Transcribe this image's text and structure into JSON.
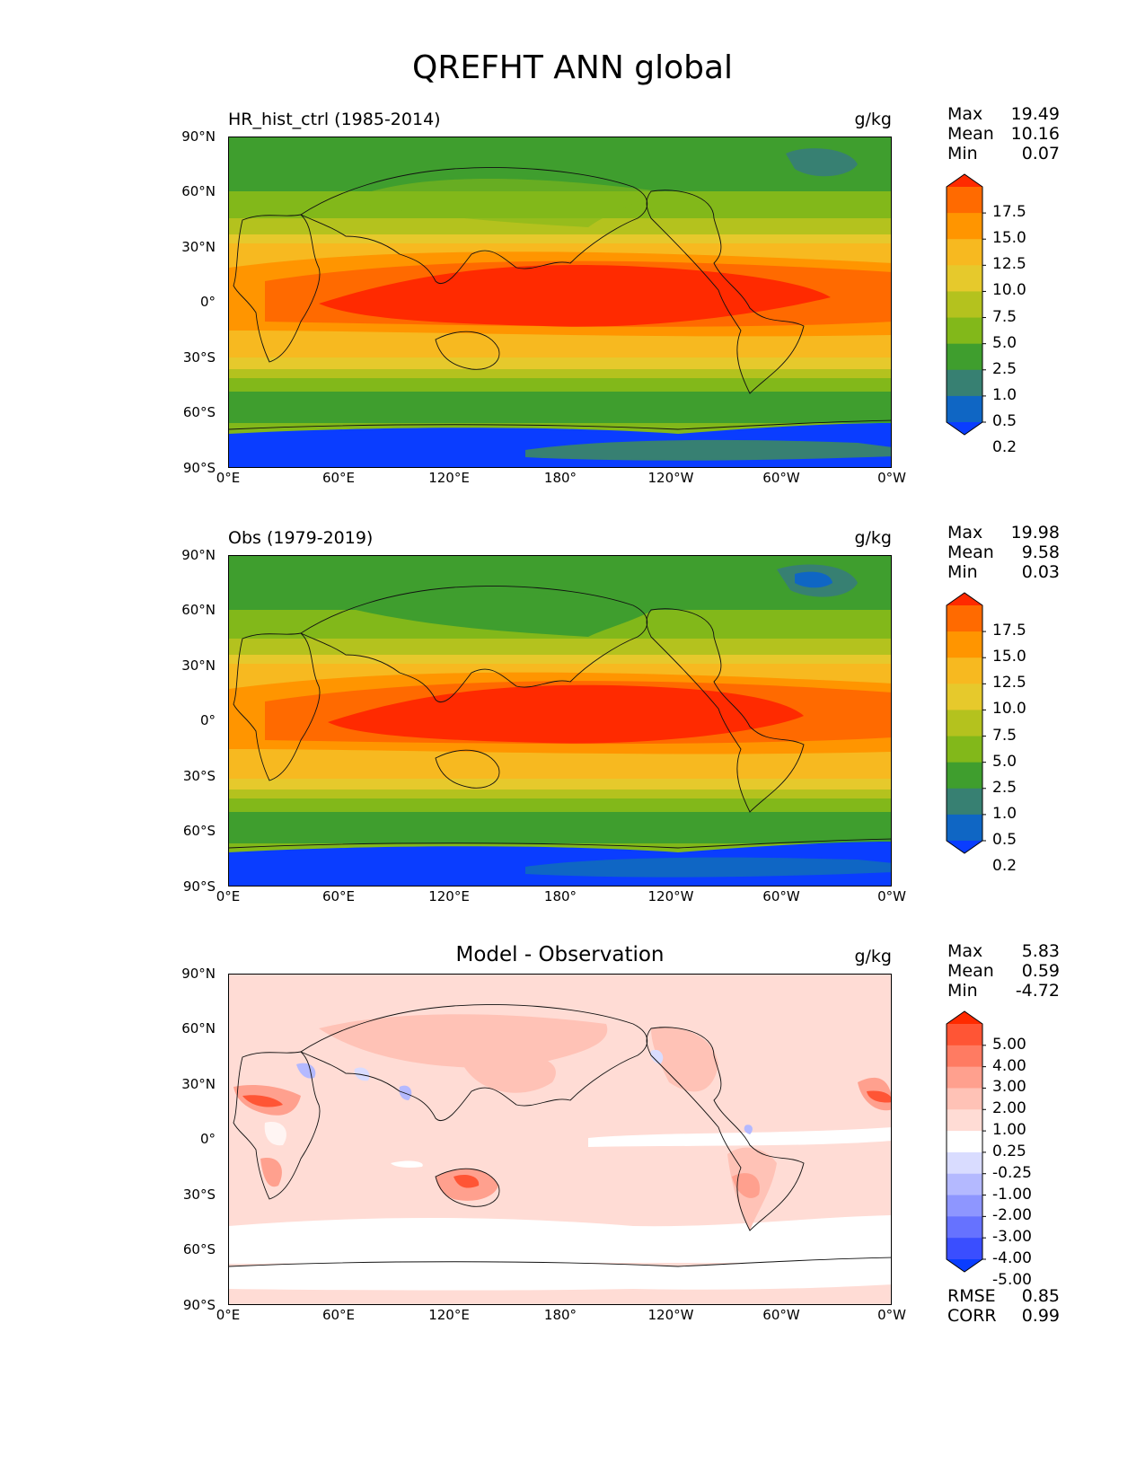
{
  "figure": {
    "title": "QREFHT ANN global"
  },
  "axes": {
    "lat_ticks": [
      "90°N",
      "60°N",
      "30°N",
      "0°",
      "30°S",
      "60°S",
      "90°S"
    ],
    "lon_ticks": [
      "0°E",
      "60°E",
      "120°E",
      "180°",
      "120°W",
      "60°W",
      "0°W"
    ]
  },
  "panels": [
    {
      "title": "HR_hist_ctrl (1985-2014)",
      "units": "g/kg",
      "stats": [
        {
          "label": "Max",
          "value": "19.49"
        },
        {
          "label": "Mean",
          "value": "10.16"
        },
        {
          "label": "Min",
          "value": "0.07"
        }
      ],
      "colorbar": {
        "levels": [
          "17.5",
          "15.0",
          "12.5",
          "10.0",
          "7.5",
          "5.0",
          "2.5",
          "1.0",
          "0.5",
          "0.2"
        ],
        "colors": [
          "#ff2a00",
          "#ff6a00",
          "#ff9500",
          "#f7b920",
          "#e6c92c",
          "#b4c21e",
          "#82b81a",
          "#3f9e2e",
          "#378072",
          "#0f66c4",
          "#0a3dff"
        ]
      }
    },
    {
      "title": "Obs (1979-2019)",
      "units": "g/kg",
      "stats": [
        {
          "label": "Max",
          "value": "19.98"
        },
        {
          "label": "Mean",
          "value": "9.58"
        },
        {
          "label": "Min",
          "value": "0.03"
        }
      ],
      "colorbar": {
        "levels": [
          "17.5",
          "15.0",
          "12.5",
          "10.0",
          "7.5",
          "5.0",
          "2.5",
          "1.0",
          "0.5",
          "0.2"
        ],
        "colors": [
          "#ff2a00",
          "#ff6a00",
          "#ff9500",
          "#f7b920",
          "#e6c92c",
          "#b4c21e",
          "#82b81a",
          "#3f9e2e",
          "#378072",
          "#0f66c4",
          "#0a3dff"
        ]
      }
    },
    {
      "title": "Model - Observation",
      "units": "g/kg",
      "stats": [
        {
          "label": "Max",
          "value": "5.83"
        },
        {
          "label": "Mean",
          "value": "0.59"
        },
        {
          "label": "Min",
          "value": "-4.72"
        }
      ],
      "colorbar": {
        "levels": [
          "5.00",
          "4.00",
          "3.00",
          "2.00",
          "1.00",
          "0.25",
          "-0.25",
          "-1.00",
          "-2.00",
          "-3.00",
          "-4.00",
          "-5.00"
        ],
        "colors": [
          "#ff2a00",
          "#ff5535",
          "#ff7b62",
          "#ffa08e",
          "#ffc2b6",
          "#ffdcd5",
          "#ffffff",
          "#d9dcff",
          "#b4b9ff",
          "#8e96ff",
          "#6672ff",
          "#3a4eff",
          "#0a3dff"
        ]
      },
      "extra_stats": [
        {
          "label": "RMSE",
          "value": "0.85"
        },
        {
          "label": "CORR",
          "value": "0.99"
        }
      ]
    }
  ]
}
